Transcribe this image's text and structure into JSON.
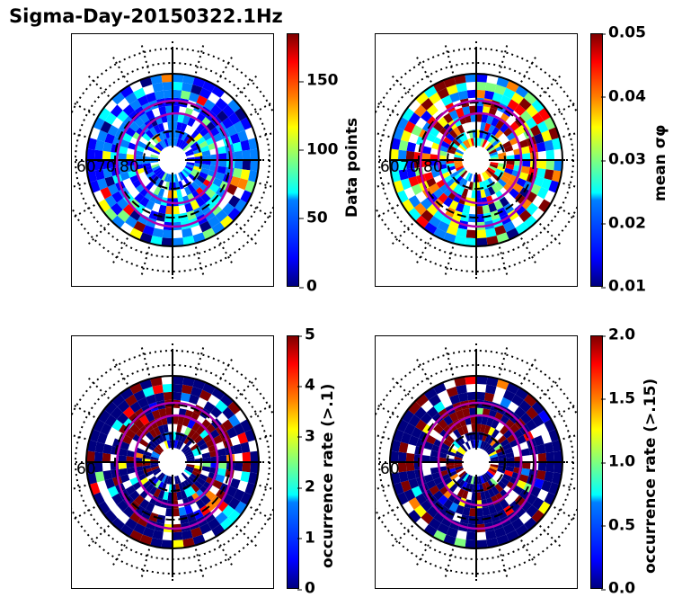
{
  "figure_title": "Sigma-Day-20150322.1Hz",
  "chart_data": [
    {
      "type": "heatmap",
      "projection": "polar (magnetic latitude / MLT)",
      "title": "",
      "colorbar_label": "Data points",
      "colorbar_range": [
        0,
        185
      ],
      "colorbar_ticks": [
        "0",
        "50",
        "100",
        "150"
      ],
      "latitude_labels": [
        "60",
        "70",
        "80"
      ],
      "colormap": "jet",
      "overlay_contours": "magenta auroral oval boundaries"
    },
    {
      "type": "heatmap",
      "projection": "polar (magnetic latitude / MLT)",
      "title": "",
      "colorbar_label": "mean σφ",
      "colorbar_range": [
        0.01,
        0.05
      ],
      "colorbar_ticks": [
        "0.01",
        "0.02",
        "0.03",
        "0.04",
        "0.05"
      ],
      "latitude_labels": [
        "60",
        "70",
        "80"
      ],
      "colormap": "jet",
      "overlay_contours": "magenta auroral oval boundaries"
    },
    {
      "type": "heatmap",
      "projection": "polar (magnetic latitude / MLT)",
      "title": "",
      "colorbar_label": "occurrence rate (>.1)",
      "colorbar_range": [
        0,
        5
      ],
      "colorbar_ticks": [
        "0",
        "1",
        "2",
        "3",
        "4",
        "5"
      ],
      "latitude_labels": [
        "60"
      ],
      "colormap": "jet",
      "overlay_contours": "magenta auroral oval boundaries"
    },
    {
      "type": "heatmap",
      "projection": "polar (magnetic latitude / MLT)",
      "title": "",
      "colorbar_label": "occurrence rate (>.15)",
      "colorbar_range": [
        0.0,
        2.0
      ],
      "colorbar_ticks": [
        "0.0",
        "0.5",
        "1.0",
        "1.5",
        "2.0"
      ],
      "latitude_labels": [
        "60"
      ],
      "colormap": "jet",
      "overlay_contours": "magenta auroral oval boundaries"
    }
  ],
  "colors": {
    "contour": "#b000b0",
    "jet": [
      "#00007f",
      "#0000ff",
      "#007fff",
      "#00ffff",
      "#7fff7f",
      "#ffff00",
      "#ff7f00",
      "#ff0000",
      "#7f0000"
    ]
  }
}
